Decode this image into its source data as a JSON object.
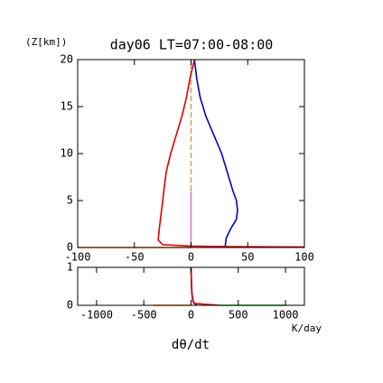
{
  "chart_data": [
    {
      "type": "line",
      "title": "day06 LT=07:00-08:00",
      "y_label": "(Z[km])",
      "xlim": [
        -100,
        100
      ],
      "xticks": [
        -100,
        -50,
        0,
        50,
        100
      ],
      "ylim": [
        0,
        20
      ],
      "yticks": [
        0,
        5,
        10,
        15,
        20
      ],
      "series": [
        {
          "color": "#ff8c00",
          "dashed": false,
          "x": [
            -100,
            0
          ],
          "y": [
            0,
            0
          ]
        },
        {
          "color": "#d2a060",
          "dashed": true,
          "x": [
            0,
            0
          ],
          "y": [
            0,
            20
          ]
        },
        {
          "color": "#e080e0",
          "dashed": false,
          "x": [
            0,
            0
          ],
          "y": [
            0,
            6
          ]
        },
        {
          "color": "#0000cc",
          "dashed": false,
          "x": [
            30,
            31,
            35,
            40,
            41,
            40,
            37,
            32,
            27,
            20,
            13,
            8,
            5,
            3
          ],
          "y": [
            0,
            1,
            2,
            3,
            4,
            5,
            6,
            8,
            10,
            12,
            14,
            16,
            18,
            20
          ]
        },
        {
          "color": "#e00000",
          "dashed": false,
          "x": [
            100,
            30,
            0,
            -25,
            -29,
            -28,
            -26,
            -24,
            -22,
            -18,
            -13,
            -8,
            -4,
            -1,
            2,
            3
          ],
          "y": [
            0.05,
            0.1,
            0.15,
            0.3,
            0.8,
            2,
            4,
            6,
            8,
            10,
            12,
            14,
            16,
            18,
            19.5,
            20
          ]
        }
      ]
    },
    {
      "type": "line",
      "x_unit": "K/day",
      "x_label": "dθ/dt",
      "xlim": [
        -1200,
        1200
      ],
      "xticks": [
        -1000,
        -500,
        0,
        500,
        1000
      ],
      "ylim": [
        0,
        1
      ],
      "yticks": [
        0,
        1
      ],
      "series": [
        {
          "color": "#ff8c00",
          "dashed": false,
          "x": [
            -400,
            0
          ],
          "y": [
            0,
            0
          ]
        },
        {
          "color": "#00cc00",
          "dashed": false,
          "x": [
            300,
            1000
          ],
          "y": [
            0,
            0
          ]
        },
        {
          "color": "#0000cc",
          "dashed": false,
          "x": [
            0,
            5,
            10,
            20,
            60
          ],
          "y": [
            1,
            0.6,
            0.3,
            0.1,
            0
          ]
        },
        {
          "color": "#e00000",
          "dashed": false,
          "x": [
            0,
            3,
            8,
            30,
            300
          ],
          "y": [
            1,
            0.6,
            0.3,
            0.05,
            0
          ]
        }
      ]
    }
  ]
}
